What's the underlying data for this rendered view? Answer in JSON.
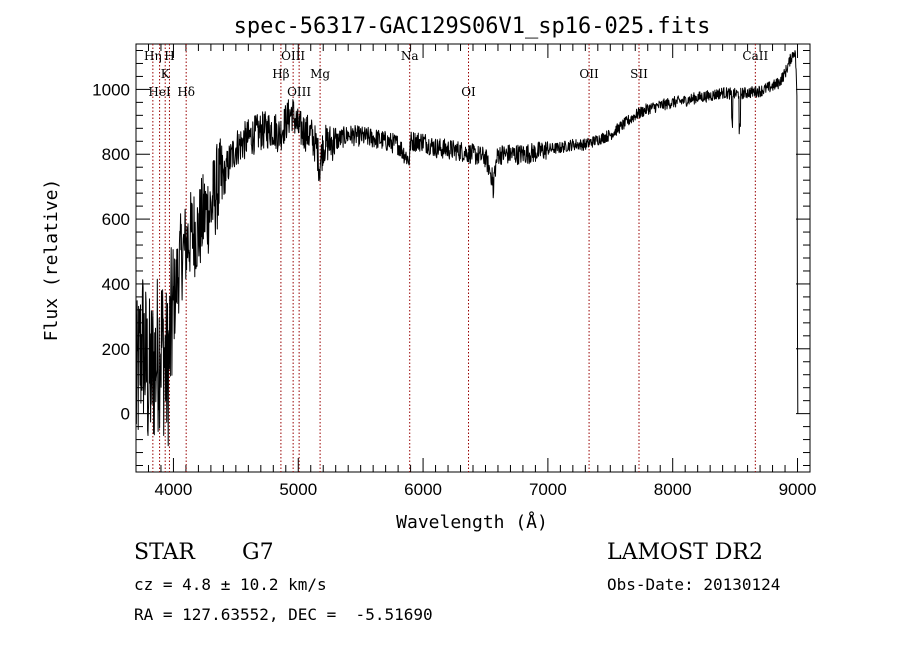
{
  "chart_data": {
    "type": "line",
    "title": "spec-56317-GAC129S06V1_sp16-025.fits",
    "xlabel": "Wavelength (Å)",
    "ylabel": "Flux (relative)",
    "xlim": [
      3700,
      9100
    ],
    "ylim": [
      -180,
      1140
    ],
    "xticks": [
      4000,
      5000,
      6000,
      7000,
      8000,
      9000
    ],
    "yticks": [
      0,
      200,
      400,
      600,
      800,
      1000
    ],
    "xtick_labels": [
      "4000",
      "5000",
      "6000",
      "7000",
      "8000",
      "9000"
    ],
    "ytick_labels": [
      "0",
      "200",
      "400",
      "600",
      "800",
      "1000"
    ],
    "line_color": "#000000",
    "marker_color": "#990000",
    "grid": false,
    "spectral_lines": [
      {
        "label": "Hη",
        "wavelength": 3835,
        "row": 0
      },
      {
        "label": "H",
        "wavelength": 3968,
        "row": 0
      },
      {
        "label": "K",
        "wavelength": 3934,
        "row": 1
      },
      {
        "label": "HeI",
        "wavelength": 3889,
        "row": 2
      },
      {
        "label": "Hδ",
        "wavelength": 4102,
        "row": 2
      },
      {
        "label": "OIII",
        "wavelength": 4959,
        "row": 0
      },
      {
        "label": "Hβ",
        "wavelength": 4861,
        "row": 1
      },
      {
        "label": "OIII",
        "wavelength": 5007,
        "row": 2
      },
      {
        "label": "Mg",
        "wavelength": 5175,
        "row": 1
      },
      {
        "label": "Na",
        "wavelength": 5893,
        "row": 0
      },
      {
        "label": "OI",
        "wavelength": 6364,
        "row": 2
      },
      {
        "label": "OII",
        "wavelength": 7330,
        "row": 1
      },
      {
        "label": "SII",
        "wavelength": 7730,
        "row": 1
      },
      {
        "label": "CaII",
        "wavelength": 8662,
        "row": 0
      }
    ],
    "spectrum": {
      "x": [
        3700,
        3750,
        3800,
        3850,
        3900,
        3950,
        4000,
        4050,
        4100,
        4150,
        4200,
        4250,
        4300,
        4350,
        4400,
        4450,
        4500,
        4600,
        4700,
        4800,
        4850,
        4900,
        4950,
        5000,
        5050,
        5100,
        5150,
        5170,
        5200,
        5300,
        5400,
        5500,
        5600,
        5700,
        5800,
        5890,
        5900,
        6000,
        6100,
        6200,
        6300,
        6400,
        6500,
        6560,
        6600,
        6700,
        6800,
        6900,
        7000,
        7100,
        7200,
        7300,
        7400,
        7500,
        7600,
        7700,
        7800,
        7900,
        8000,
        8100,
        8200,
        8300,
        8400,
        8500,
        8600,
        8700,
        8800,
        8850,
        8900,
        8950,
        8980,
        9000
      ],
      "y": [
        60,
        230,
        100,
        150,
        230,
        120,
        330,
        470,
        520,
        560,
        560,
        620,
        630,
        700,
        720,
        780,
        820,
        850,
        870,
        880,
        860,
        900,
        930,
        880,
        870,
        860,
        820,
        760,
        830,
        840,
        860,
        855,
        850,
        840,
        830,
        780,
        840,
        840,
        820,
        815,
        810,
        800,
        790,
        720,
        800,
        800,
        800,
        805,
        815,
        820,
        830,
        830,
        845,
        860,
        890,
        920,
        940,
        950,
        960,
        965,
        975,
        980,
        990,
        985,
        990,
        995,
        1010,
        1020,
        1050,
        1100,
        1120,
        980
      ]
    }
  },
  "info": {
    "class": "STAR",
    "subclass": "G7",
    "cz": "cz = 4.8 ± 10.2 km/s",
    "radec": "RA = 127.63552, DEC =  -5.51690",
    "survey": "LAMOST DR2",
    "obsdate": "Obs-Date: 20130124"
  }
}
